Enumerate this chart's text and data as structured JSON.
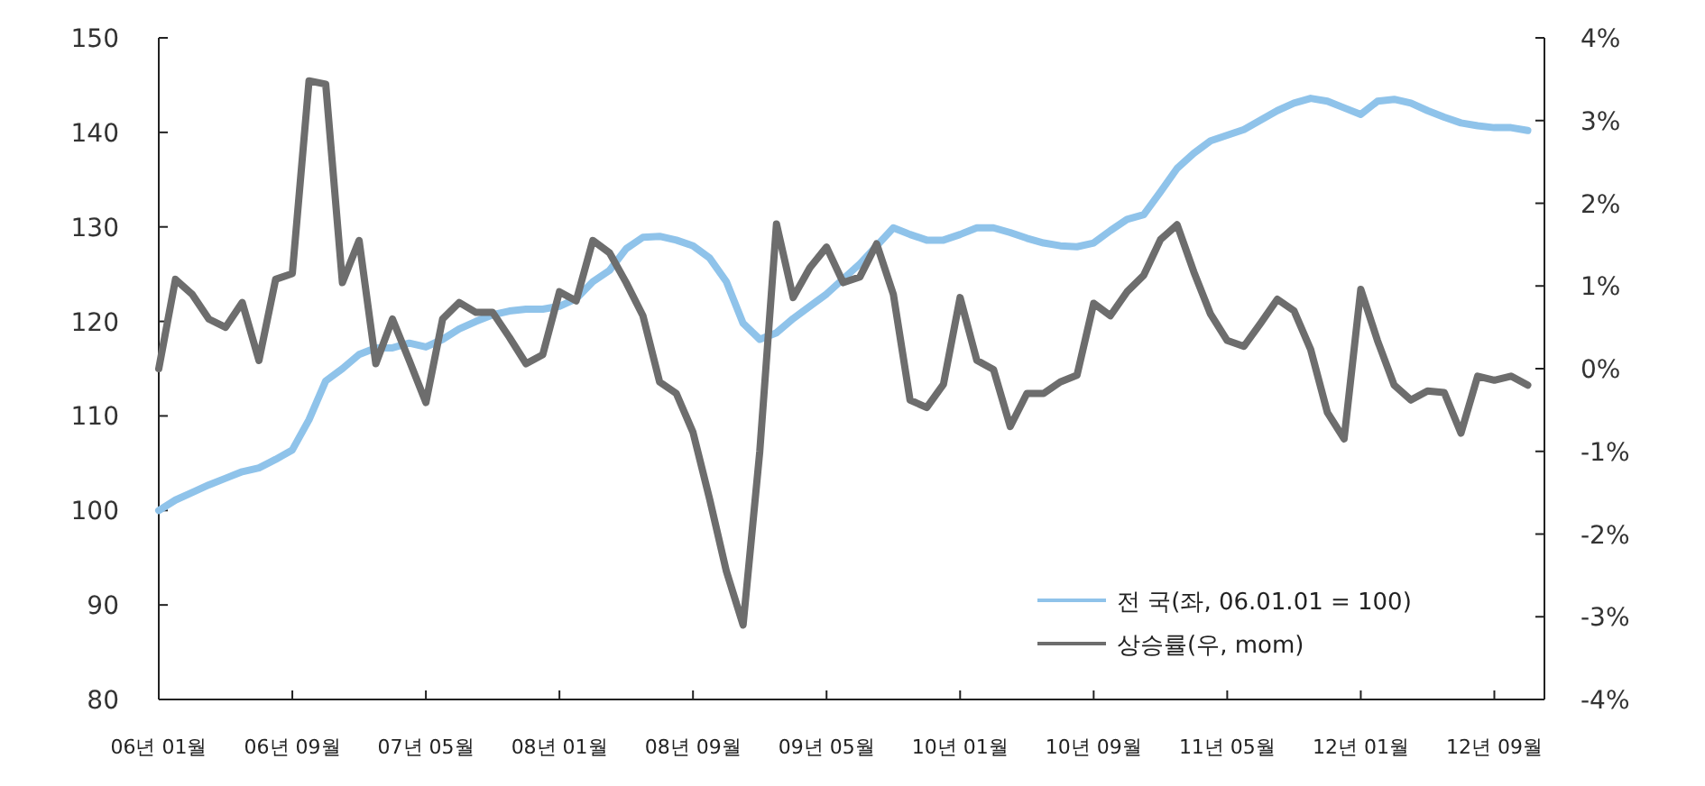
{
  "chart_data": {
    "type": "line",
    "x": [
      "2006-01",
      "2006-02",
      "2006-03",
      "2006-04",
      "2006-05",
      "2006-06",
      "2006-07",
      "2006-08",
      "2006-09",
      "2006-10",
      "2006-11",
      "2006-12",
      "2007-01",
      "2007-02",
      "2007-03",
      "2007-04",
      "2007-05",
      "2007-06",
      "2007-07",
      "2007-08",
      "2007-09",
      "2007-10",
      "2007-11",
      "2007-12",
      "2008-01",
      "2008-02",
      "2008-03",
      "2008-04",
      "2008-05",
      "2008-06",
      "2008-07",
      "2008-08",
      "2008-09",
      "2008-10",
      "2008-11",
      "2008-12",
      "2009-01",
      "2009-02",
      "2009-03",
      "2009-04",
      "2009-05",
      "2009-06",
      "2009-07",
      "2009-08",
      "2009-09",
      "2009-10",
      "2009-11",
      "2009-12",
      "2010-01",
      "2010-02",
      "2010-03",
      "2010-04",
      "2010-05",
      "2010-06",
      "2010-07",
      "2010-08",
      "2010-09",
      "2010-10",
      "2010-11",
      "2010-12",
      "2011-01",
      "2011-02",
      "2011-03",
      "2011-04",
      "2011-05",
      "2011-06",
      "2011-07",
      "2011-08",
      "2011-09",
      "2011-10",
      "2011-11",
      "2011-12",
      "2012-01",
      "2012-02",
      "2012-03",
      "2012-04",
      "2012-05",
      "2012-06",
      "2012-07",
      "2012-08",
      "2012-09",
      "2012-10",
      "2012-11"
    ],
    "series": [
      {
        "name": "전 국(좌, 06.01.01 = 100)",
        "color": "#8fc3ea",
        "axis": "y",
        "values": [
          100.0,
          101.1,
          101.9,
          102.7,
          103.4,
          104.1,
          104.5,
          105.4,
          106.4,
          109.6,
          113.7,
          115.0,
          116.5,
          117.2,
          117.2,
          117.7,
          117.3,
          118.1,
          119.2,
          120.0,
          120.7,
          121.1,
          121.3,
          121.3,
          121.6,
          122.4,
          124.2,
          125.4,
          127.7,
          128.9,
          129.0,
          128.6,
          128.0,
          126.7,
          124.2,
          119.8,
          118.1,
          118.8,
          120.3,
          121.6,
          122.9,
          124.5,
          126.1,
          128.0,
          129.9,
          129.2,
          128.6,
          128.6,
          129.2,
          129.9,
          129.9,
          129.4,
          128.8,
          128.3,
          128.0,
          127.9,
          128.3,
          129.6,
          130.8,
          131.3,
          133.7,
          136.2,
          137.8,
          139.1,
          139.7,
          140.3,
          141.3,
          142.3,
          143.1,
          143.6,
          143.3,
          142.6,
          141.9,
          143.3,
          143.5,
          143.1,
          142.3,
          141.6,
          141.0,
          140.7,
          140.5,
          140.5,
          140.2
        ]
      },
      {
        "name": "상승률(우, mom)",
        "color": "#6d6d6d",
        "axis": "y2",
        "values": [
          0.0,
          1.08,
          0.9,
          0.6,
          0.5,
          0.8,
          0.1,
          1.08,
          1.15,
          3.48,
          3.44,
          1.04,
          1.55,
          0.06,
          0.6,
          0.1,
          -0.41,
          0.6,
          0.8,
          0.68,
          0.68,
          0.38,
          0.06,
          0.17,
          0.93,
          0.82,
          1.55,
          1.4,
          1.04,
          0.64,
          -0.16,
          -0.3,
          -0.77,
          -1.58,
          -2.45,
          -3.1,
          -1.0,
          1.75,
          0.86,
          1.22,
          1.47,
          1.04,
          1.11,
          1.51,
          0.9,
          -0.38,
          -0.47,
          -0.19,
          0.86,
          0.1,
          -0.01,
          -0.7,
          -0.3,
          -0.3,
          -0.16,
          -0.08,
          0.79,
          0.64,
          0.93,
          1.13,
          1.56,
          1.74,
          1.17,
          0.66,
          0.34,
          0.27,
          0.55,
          0.84,
          0.7,
          0.23,
          -0.53,
          -0.85,
          0.96,
          0.34,
          -0.2,
          -0.38,
          -0.27,
          -0.29,
          -0.78,
          -0.09,
          -0.14,
          -0.09,
          -0.2
        ]
      }
    ],
    "xlim": [
      "2006-01",
      "2012-12"
    ],
    "xticks": [
      {
        "value": "2006-01",
        "label": "06년 01월"
      },
      {
        "value": "2006-09",
        "label": "06년 09월"
      },
      {
        "value": "2007-05",
        "label": "07년 05월"
      },
      {
        "value": "2008-01",
        "label": "08년 01월"
      },
      {
        "value": "2008-09",
        "label": "08년 09월"
      },
      {
        "value": "2009-05",
        "label": "09년 05월"
      },
      {
        "value": "2010-01",
        "label": "10년 01월"
      },
      {
        "value": "2010-09",
        "label": "10년 09월"
      },
      {
        "value": "2011-05",
        "label": "11년 05월"
      },
      {
        "value": "2012-01",
        "label": "12년 01월"
      },
      {
        "value": "2012-09",
        "label": "12년 09월"
      }
    ],
    "ylim": [
      80,
      150
    ],
    "yticks": [
      80,
      90,
      100,
      110,
      120,
      130,
      140,
      150
    ],
    "y2lim": [
      -4,
      4
    ],
    "y2ticks": [
      {
        "value": -4,
        "label": "-4%"
      },
      {
        "value": -3,
        "label": "-3%"
      },
      {
        "value": -2,
        "label": "-2%"
      },
      {
        "value": -1,
        "label": "-1%"
      },
      {
        "value": 0,
        "label": "0%"
      },
      {
        "value": 1,
        "label": "1%"
      },
      {
        "value": 2,
        "label": "2%"
      },
      {
        "value": 3,
        "label": "3%"
      },
      {
        "value": 4,
        "label": "4%"
      }
    ],
    "grid": false,
    "legend": "bottom right",
    "marker": "none",
    "line_style": "solid"
  }
}
